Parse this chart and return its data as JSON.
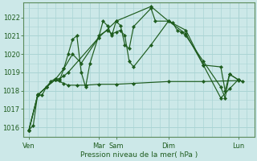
{
  "bg_color": "#cce8e8",
  "grid_color": "#aad4d4",
  "line_color": "#1e5c1e",
  "title": "Pression niveau de la mer( hPa )",
  "ylim": [
    1015.5,
    1022.8
  ],
  "yticks": [
    1016,
    1017,
    1018,
    1019,
    1020,
    1021,
    1022
  ],
  "day_labels": [
    "Ven",
    "Mar",
    "Sam",
    "Dim",
    "Lun"
  ],
  "day_positions": [
    0,
    96,
    120,
    192,
    288
  ],
  "xlim": [
    -8,
    310
  ],
  "lines": [
    {
      "x": [
        0,
        6,
        12,
        18,
        24,
        30,
        36,
        42,
        48,
        54,
        96,
        102,
        108,
        114,
        120,
        126,
        132,
        138,
        144,
        168,
        174,
        192,
        198,
        204,
        210,
        216,
        240,
        264,
        270,
        276,
        288,
        294
      ],
      "y": [
        1015.85,
        1016.1,
        1017.8,
        1017.75,
        1018.2,
        1018.5,
        1018.65,
        1018.65,
        1018.8,
        1019.0,
        1020.9,
        1021.8,
        1021.55,
        1021.0,
        1021.8,
        1021.55,
        1020.5,
        1020.3,
        1021.5,
        1022.5,
        1021.8,
        1021.8,
        1021.7,
        1021.3,
        1021.2,
        1021.0,
        1019.6,
        1018.2,
        1017.6,
        1018.9,
        1018.6,
        1018.5
      ]
    },
    {
      "x": [
        0,
        12,
        24,
        36,
        48,
        54,
        66,
        78,
        96,
        120,
        144,
        192,
        240,
        288
      ],
      "y": [
        1015.85,
        1017.75,
        1018.2,
        1018.6,
        1018.4,
        1018.3,
        1018.3,
        1018.3,
        1018.35,
        1018.35,
        1018.4,
        1018.5,
        1018.5,
        1018.55
      ]
    },
    {
      "x": [
        0,
        12,
        24,
        36,
        42,
        48,
        54,
        60,
        66,
        72,
        78,
        84,
        96,
        108,
        114,
        120,
        126,
        132,
        138,
        144,
        168,
        192,
        216,
        240,
        264,
        270,
        276,
        288
      ],
      "y": [
        1015.85,
        1017.75,
        1018.2,
        1018.6,
        1018.55,
        1019.2,
        1020.0,
        1020.8,
        1021.0,
        1019.0,
        1018.2,
        1019.5,
        1021.0,
        1021.3,
        1021.1,
        1021.2,
        1021.3,
        1021.0,
        1019.6,
        1019.3,
        1020.5,
        1021.8,
        1021.3,
        1019.4,
        1019.3,
        1018.0,
        1018.9,
        1018.6
      ]
    },
    {
      "x": [
        0,
        12,
        24,
        36,
        48,
        60,
        72,
        96,
        120,
        168,
        192,
        216,
        240,
        264,
        276,
        288
      ],
      "y": [
        1015.85,
        1017.75,
        1018.2,
        1018.6,
        1019.2,
        1020.0,
        1019.5,
        1020.9,
        1021.8,
        1022.6,
        1021.8,
        1021.1,
        1019.4,
        1017.6,
        1018.1,
        1018.6
      ]
    }
  ]
}
